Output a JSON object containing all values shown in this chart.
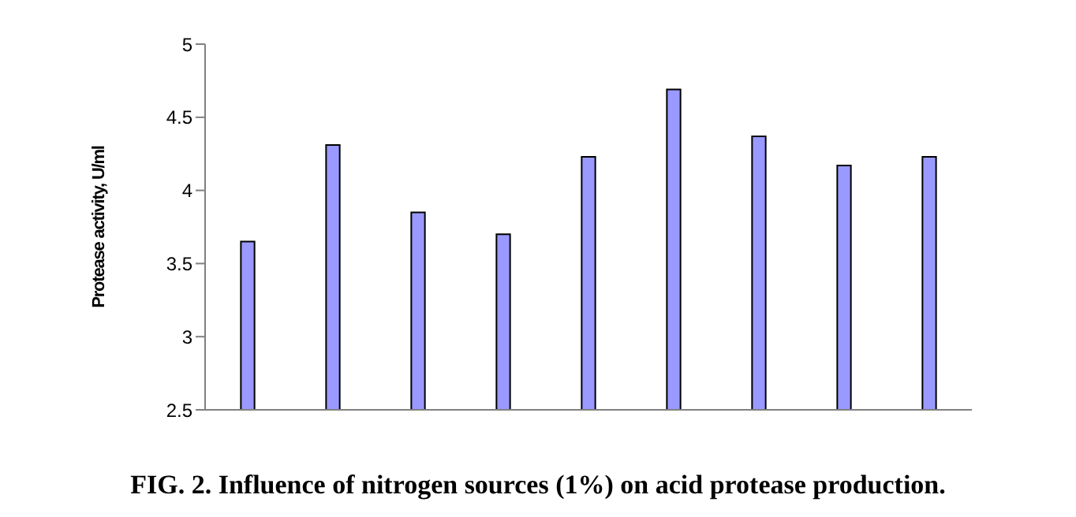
{
  "chart_data": {
    "type": "bar",
    "title": "FIG. 2. Influence of nitrogen sources (1%) on acid protease production.",
    "ylabel": "Protease activity, U/ml",
    "categories": [
      null,
      null,
      null,
      null,
      null,
      null,
      null,
      null,
      null
    ],
    "values": [
      3.65,
      4.31,
      3.85,
      3.7,
      4.23,
      4.69,
      4.37,
      4.17,
      4.23
    ],
    "color": "#9999ff",
    "ylim": [
      2.5,
      5
    ],
    "yticks": [
      2.5,
      3,
      3.5,
      4,
      4.5,
      5
    ],
    "grid": false,
    "legend": false
  }
}
